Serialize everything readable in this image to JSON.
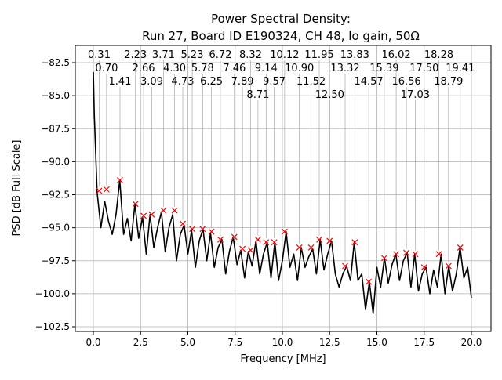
{
  "chart_data": {
    "type": "line",
    "title_line1": "Power Spectral Density:",
    "title_line2": "Run 27, Board ID E190324, CH 48, lo gain, 50Ω",
    "xlabel": "Frequency [MHz]",
    "ylabel": "PSD [dB Full Scale]",
    "xlim": [
      -0.95,
      21.0
    ],
    "ylim": [
      -102.8,
      -81.2
    ],
    "grid": true,
    "xticks": [
      0.0,
      2.5,
      5.0,
      7.5,
      10.0,
      12.5,
      15.0,
      17.5,
      20.0
    ],
    "xtick_labels": [
      "0.0",
      "2.5",
      "5.0",
      "7.5",
      "10.0",
      "12.5",
      "15.0",
      "17.5",
      "20.0"
    ],
    "yticks": [
      -82.5,
      -85.0,
      -87.5,
      -90.0,
      -92.5,
      -95.0,
      -97.5,
      -100.0,
      -102.5
    ],
    "ytick_labels": [
      "−82.5",
      "−85.0",
      "−87.5",
      "−90.0",
      "−92.5",
      "−95.0",
      "−97.5",
      "−100.0",
      "−102.5"
    ],
    "line_color": "#000000",
    "marker_color": "#ff0000",
    "series": [
      {
        "x": [
          0.0,
          0.2,
          0.4,
          0.6,
          0.8,
          1.0,
          1.2,
          1.4,
          1.6,
          1.8,
          2.0,
          2.2,
          2.4,
          2.6,
          2.8,
          3.0,
          3.2,
          3.4,
          3.6,
          3.8,
          4.0,
          4.2,
          4.4,
          4.6,
          4.8,
          5.0,
          5.2,
          5.4,
          5.6,
          5.8,
          6.0,
          6.2,
          6.4,
          6.6,
          6.8,
          7.0,
          7.2,
          7.4,
          7.6,
          7.8,
          8.0,
          8.2,
          8.4,
          8.6,
          8.8,
          9.0,
          9.2,
          9.4,
          9.6,
          9.8,
          10.0,
          10.2,
          10.4,
          10.6,
          10.8,
          11.0,
          11.2,
          11.4,
          11.6,
          11.8,
          12.0,
          12.2,
          12.4,
          12.6,
          12.8,
          13.0,
          13.2,
          13.4,
          13.6,
          13.8,
          14.0,
          14.2,
          14.4,
          14.6,
          14.8,
          15.0,
          15.2,
          15.4,
          15.6,
          15.8,
          16.0,
          16.2,
          16.4,
          16.6,
          16.8,
          17.0,
          17.2,
          17.4,
          17.6,
          17.8,
          18.0,
          18.2,
          18.4,
          18.6,
          18.8,
          19.0,
          19.2,
          19.4,
          19.6,
          19.8,
          20.0
        ],
        "y": [
          -83.2,
          -92.3,
          -95.0,
          -93.0,
          -94.5,
          -95.5,
          -94.0,
          -91.4,
          -95.5,
          -94.3,
          -96.0,
          -93.2,
          -95.8,
          -94.2,
          -97.0,
          -94.0,
          -96.5,
          -95.0,
          -93.8,
          -96.8,
          -95.0,
          -94.0,
          -97.5,
          -95.5,
          -94.8,
          -97.0,
          -95.2,
          -98.0,
          -96.0,
          -95.1,
          -97.5,
          -95.4,
          -98.0,
          -96.5,
          -95.9,
          -98.5,
          -96.8,
          -95.7,
          -97.8,
          -96.7,
          -98.8,
          -96.8,
          -97.9,
          -96.0,
          -98.5,
          -97.0,
          -96.1,
          -98.8,
          -96.1,
          -99.0,
          -97.5,
          -95.3,
          -98.0,
          -97.0,
          -99.0,
          -96.5,
          -98.0,
          -97.2,
          -96.6,
          -98.5,
          -95.9,
          -98.2,
          -97.0,
          -96.0,
          -98.5,
          -99.5,
          -98.5,
          -97.9,
          -99.0,
          -96.1,
          -99.0,
          -98.5,
          -101.2,
          -99.1,
          -101.5,
          -98.0,
          -99.5,
          -97.3,
          -99.2,
          -97.8,
          -97.0,
          -99.0,
          -97.5,
          -96.9,
          -99.5,
          -97.0,
          -99.8,
          -98.5,
          -98.0,
          -100.0,
          -98.2,
          -99.5,
          -97.0,
          -100.0,
          -97.9,
          -99.8,
          -98.5,
          -96.5,
          -98.8,
          -98.0,
          -100.3
        ]
      }
    ],
    "peaks": [
      {
        "label": "0.31",
        "x": 0.31,
        "y": -92.2
      },
      {
        "label": "0.70",
        "x": 0.7,
        "y": -92.1
      },
      {
        "label": "1.41",
        "x": 1.41,
        "y": -91.4
      },
      {
        "label": "2.23",
        "x": 2.23,
        "y": -93.2
      },
      {
        "label": "2.66",
        "x": 2.66,
        "y": -94.1
      },
      {
        "label": "3.09",
        "x": 3.09,
        "y": -94.0
      },
      {
        "label": "3.71",
        "x": 3.71,
        "y": -93.7
      },
      {
        "label": "4.30",
        "x": 4.3,
        "y": -93.7
      },
      {
        "label": "4.73",
        "x": 4.73,
        "y": -94.7
      },
      {
        "label": "5.23",
        "x": 5.23,
        "y": -95.1
      },
      {
        "label": "5.78",
        "x": 5.78,
        "y": -95.1
      },
      {
        "label": "6.25",
        "x": 6.25,
        "y": -95.3
      },
      {
        "label": "6.72",
        "x": 6.72,
        "y": -95.9
      },
      {
        "label": "7.46",
        "x": 7.46,
        "y": -95.7
      },
      {
        "label": "7.89",
        "x": 7.89,
        "y": -96.6
      },
      {
        "label": "8.32",
        "x": 8.32,
        "y": -96.7
      },
      {
        "label": "8.71",
        "x": 8.71,
        "y": -95.9
      },
      {
        "label": "9.14",
        "x": 9.14,
        "y": -96.1
      },
      {
        "label": "9.57",
        "x": 9.57,
        "y": -96.1
      },
      {
        "label": "10.12",
        "x": 10.12,
        "y": -95.3
      },
      {
        "label": "10.90",
        "x": 10.9,
        "y": -96.5
      },
      {
        "label": "11.52",
        "x": 11.52,
        "y": -96.5
      },
      {
        "label": "11.95",
        "x": 11.95,
        "y": -95.9
      },
      {
        "label": "12.50",
        "x": 12.5,
        "y": -96.0
      },
      {
        "label": "13.32",
        "x": 13.32,
        "y": -97.9
      },
      {
        "label": "13.83",
        "x": 13.83,
        "y": -96.1
      },
      {
        "label": "14.57",
        "x": 14.57,
        "y": -99.1
      },
      {
        "label": "15.39",
        "x": 15.39,
        "y": -97.3
      },
      {
        "label": "16.02",
        "x": 16.02,
        "y": -97.0
      },
      {
        "label": "16.56",
        "x": 16.56,
        "y": -96.9
      },
      {
        "label": "17.03",
        "x": 17.03,
        "y": -97.0
      },
      {
        "label": "17.50",
        "x": 17.5,
        "y": -98.0
      },
      {
        "label": "18.28",
        "x": 18.28,
        "y": -97.0
      },
      {
        "label": "18.79",
        "x": 18.79,
        "y": -97.9
      },
      {
        "label": "19.41",
        "x": 19.41,
        "y": -96.5
      }
    ]
  }
}
